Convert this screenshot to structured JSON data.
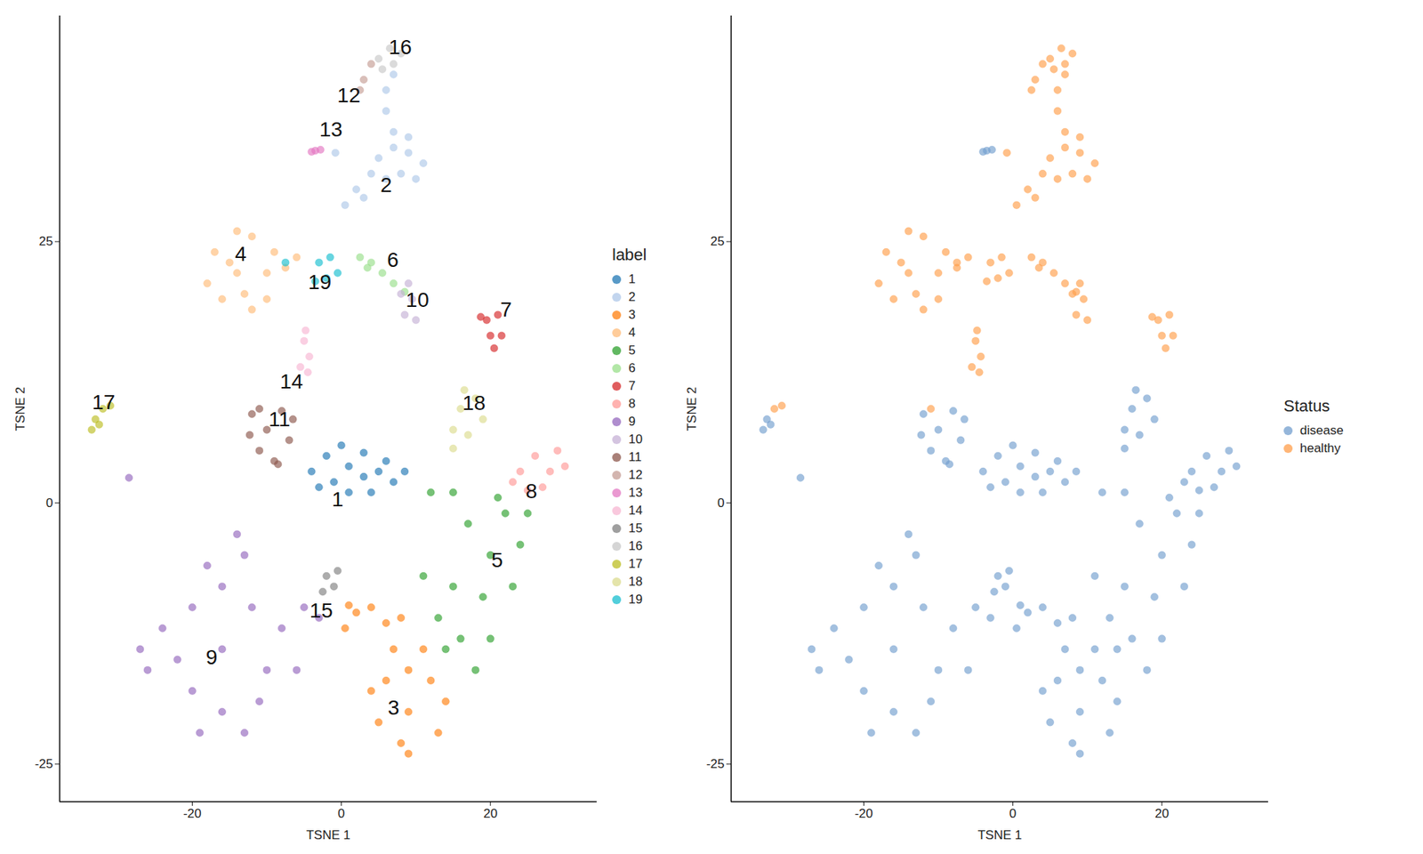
{
  "chart_data": [
    {
      "type": "scatter",
      "x_label": "TSNE 1",
      "y_label": "TSNE 2",
      "legend_title": "label",
      "legend": "right",
      "xlim": [
        -37.8,
        34.3
      ],
      "ylim": [
        -28.6,
        46.6
      ],
      "xticks": [
        -20,
        0,
        20
      ],
      "yticks": [
        -25,
        0,
        25
      ],
      "series": [
        {
          "name": "1",
          "color": "#1f77b4",
          "x": [
            -4,
            -2,
            0,
            -1,
            1,
            3,
            3,
            5,
            6,
            7,
            8.5,
            4,
            -3,
            1
          ],
          "y": [
            3,
            4.5,
            5.5,
            2,
            3.5,
            2.5,
            4.8,
            3,
            4,
            2,
            3,
            1,
            1.5,
            1
          ]
        },
        {
          "name": "2",
          "color": "#aec7e8",
          "x": [
            5,
            7,
            9,
            11,
            6,
            8,
            10,
            7,
            9,
            4,
            6,
            6,
            7,
            2,
            0.5,
            3,
            -0.8
          ],
          "y": [
            33,
            34,
            33.5,
            32.5,
            31,
            31.5,
            31,
            35.5,
            35,
            31.5,
            37.5,
            39.5,
            41,
            30,
            28.5,
            29.2,
            33.5
          ]
        },
        {
          "name": "3",
          "color": "#ff7f0e",
          "x": [
            9,
            6,
            12,
            5,
            13,
            9,
            7,
            11,
            9,
            8,
            4,
            14,
            2,
            4,
            6,
            8,
            0.5,
            1
          ],
          "y": [
            -20,
            -17,
            -17,
            -21,
            -22,
            -24,
            -14,
            -14,
            -16,
            -23,
            -18,
            -19,
            -10.5,
            -10,
            -11.5,
            -11,
            -12,
            -9.8
          ]
        },
        {
          "name": "4",
          "color": "#ffbb78",
          "x": [
            -14,
            -17,
            -12,
            -10,
            -16,
            -12,
            -18,
            -14,
            -10,
            -15,
            -9,
            -7.5,
            -6,
            -13
          ],
          "y": [
            22,
            24,
            25.5,
            22,
            19.5,
            18.5,
            21,
            26,
            19.5,
            23,
            24,
            22.5,
            23.5,
            20
          ]
        },
        {
          "name": "5",
          "color": "#2ca02c",
          "x": [
            20,
            17,
            22,
            24,
            15,
            19,
            23,
            16,
            20,
            14,
            18,
            21,
            25,
            13,
            11,
            12,
            15
          ],
          "y": [
            -5,
            -2,
            -1,
            -4,
            -8,
            -9,
            -8,
            -13,
            -13,
            -14,
            -16,
            0.5,
            -1,
            -11,
            -7,
            1,
            1
          ]
        },
        {
          "name": "6",
          "color": "#98df8a",
          "x": [
            2.5,
            4,
            5.5,
            7,
            8.5,
            3.5
          ],
          "y": [
            23.5,
            23,
            22,
            21,
            20.2,
            22.5
          ]
        },
        {
          "name": "7",
          "color": "#d62728",
          "x": [
            19.5,
            21,
            20,
            21.5,
            20.5,
            18.7
          ],
          "y": [
            17.5,
            18,
            16,
            16,
            14.8,
            17.8
          ]
        },
        {
          "name": "8",
          "color": "#ff9896",
          "x": [
            24,
            26,
            28,
            27,
            29,
            30,
            23,
            25
          ],
          "y": [
            3,
            4.5,
            3,
            1.5,
            5,
            3.5,
            2,
            1.2
          ]
        },
        {
          "name": "9",
          "color": "#9467bd",
          "x": [
            -16,
            -20,
            -12,
            -22,
            -10,
            -16,
            -18,
            -13,
            -24,
            -8,
            -19,
            -13,
            -26,
            -6,
            -16,
            -20,
            -11,
            -14,
            -27,
            -5,
            -28.5,
            -3
          ],
          "y": [
            -14,
            -10,
            -10,
            -15,
            -16,
            -20,
            -6,
            -5,
            -12,
            -12,
            -22,
            -22,
            -16,
            -16,
            -8,
            -18,
            -19,
            -3,
            -14,
            -10,
            2.4,
            -11
          ]
        },
        {
          "name": "10",
          "color": "#c5b0d5",
          "x": [
            8,
            9.5,
            8.5,
            10,
            9
          ],
          "y": [
            20,
            19.5,
            18,
            17.5,
            21
          ]
        },
        {
          "name": "11",
          "color": "#8c564b",
          "x": [
            -10,
            -12,
            -8,
            -11,
            -7,
            -9,
            -6.5,
            -12.3,
            -8.5,
            -11
          ],
          "y": [
            7,
            8.5,
            8.8,
            5,
            6,
            4,
            8,
            6.5,
            3.7,
            9
          ]
        },
        {
          "name": "12",
          "color": "#c49c94",
          "x": [
            4,
            3,
            2.5
          ],
          "y": [
            42,
            40.5,
            39.5
          ]
        },
        {
          "name": "13",
          "color": "#e377c2",
          "x": [
            -3.5,
            -2.8,
            -4
          ],
          "y": [
            33.7,
            33.8,
            33.6
          ]
        },
        {
          "name": "14",
          "color": "#f7b6d2",
          "x": [
            -5,
            -4.3,
            -5.5,
            -4.5,
            -4.8
          ],
          "y": [
            15.5,
            14,
            13,
            12.5,
            16.5
          ]
        },
        {
          "name": "15",
          "color": "#7f7f7f",
          "x": [
            -2,
            -1,
            -0.5,
            -2.5
          ],
          "y": [
            -7,
            -8,
            -6.5,
            -8.5
          ]
        },
        {
          "name": "16",
          "color": "#c7c7c7",
          "x": [
            5,
            6.5,
            8,
            7,
            5.5
          ],
          "y": [
            42.5,
            43.5,
            43,
            42,
            41.5
          ]
        },
        {
          "name": "17",
          "color": "#bcbd22",
          "x": [
            -33.5,
            -33,
            -32.5,
            -32,
            -31
          ],
          "y": [
            7,
            8,
            7.5,
            9,
            9.3
          ]
        },
        {
          "name": "18",
          "color": "#dbdb8d",
          "x": [
            16,
            18,
            15,
            17,
            19,
            16.5,
            15
          ],
          "y": [
            9,
            10,
            7,
            6.5,
            8,
            10.8,
            5.2
          ]
        },
        {
          "name": "19",
          "color": "#17becf",
          "x": [
            -3,
            -1.5,
            -2,
            -0.5,
            -3.5,
            -7.5
          ],
          "y": [
            23,
            23.5,
            21.5,
            22,
            21.2,
            23
          ]
        }
      ],
      "annotations": [
        {
          "text": "16",
          "x": 7.9,
          "y": 43.6
        },
        {
          "text": "12",
          "x": 1.0,
          "y": 39.0
        },
        {
          "text": "13",
          "x": -1.4,
          "y": 35.7
        },
        {
          "text": "2",
          "x": 6.0,
          "y": 30.4
        },
        {
          "text": "4",
          "x": -13.5,
          "y": 23.8
        },
        {
          "text": "6",
          "x": 6.9,
          "y": 23.2
        },
        {
          "text": "19",
          "x": -2.9,
          "y": 21.1
        },
        {
          "text": "10",
          "x": 10.2,
          "y": 19.4
        },
        {
          "text": "7",
          "x": 22.1,
          "y": 18.5
        },
        {
          "text": "14",
          "x": -6.7,
          "y": 11.6
        },
        {
          "text": "17",
          "x": -31.9,
          "y": 9.6
        },
        {
          "text": "18",
          "x": 17.8,
          "y": 9.5
        },
        {
          "text": "11",
          "x": -8.3,
          "y": 8.0
        },
        {
          "text": "1",
          "x": -0.5,
          "y": 0.3
        },
        {
          "text": "8",
          "x": 25.5,
          "y": 1.1
        },
        {
          "text": "5",
          "x": 20.9,
          "y": -5.5
        },
        {
          "text": "15",
          "x": -2.7,
          "y": -10.3
        },
        {
          "text": "9",
          "x": -17.4,
          "y": -14.8
        },
        {
          "text": "3",
          "x": 7.0,
          "y": -19.6
        }
      ]
    },
    {
      "type": "scatter",
      "x_label": "TSNE 1",
      "y_label": "TSNE 2",
      "legend_title": "Status",
      "legend": "right",
      "xlim": [
        -37.8,
        34.3
      ],
      "ylim": [
        -28.6,
        46.6
      ],
      "xticks": [
        -20,
        0,
        20
      ],
      "yticks": [
        -25,
        0,
        25
      ],
      "series": [
        {
          "name": "disease",
          "color": "#729ece",
          "x": [
            -4,
            -2,
            0,
            -1,
            1,
            3,
            3,
            5,
            6,
            7,
            8.5,
            4,
            -3,
            1,
            9,
            6,
            12,
            5,
            13,
            9,
            7,
            11,
            9,
            8,
            4,
            14,
            2,
            4,
            6,
            8,
            0.5,
            1,
            20,
            17,
            22,
            24,
            15,
            19,
            23,
            16,
            20,
            14,
            18,
            21,
            25,
            13,
            11,
            12,
            15,
            24,
            26,
            28,
            27,
            29,
            30,
            23,
            25,
            -16,
            -20,
            -12,
            -22,
            -10,
            -16,
            -18,
            -13,
            -24,
            -8,
            -19,
            -13,
            -26,
            -6,
            -16,
            -20,
            -11,
            -14,
            -27,
            -5,
            -28.5,
            -3,
            -10,
            -12,
            -8,
            -11,
            -7,
            -9,
            -6.5,
            -12.3,
            -8.5,
            -3.5,
            -2.8,
            -4,
            -2,
            -1,
            -0.5,
            -2.5,
            -33.5,
            -33,
            -32.5,
            16,
            18,
            15,
            17,
            19,
            16.5,
            15
          ],
          "y": [
            3,
            4.5,
            5.5,
            2,
            3.5,
            2.5,
            4.8,
            3,
            4,
            2,
            3,
            1,
            1.5,
            1,
            -20,
            -17,
            -17,
            -21,
            -22,
            -24,
            -14,
            -14,
            -16,
            -23,
            -18,
            -19,
            -10.5,
            -10,
            -11.5,
            -11,
            -12,
            -9.8,
            -5,
            -2,
            -1,
            -4,
            -8,
            -9,
            -8,
            -13,
            -13,
            -14,
            -16,
            0.5,
            -1,
            -11,
            -7,
            1,
            1,
            3,
            4.5,
            3,
            1.5,
            5,
            3.5,
            2,
            1.2,
            -14,
            -10,
            -10,
            -15,
            -16,
            -20,
            -6,
            -5,
            -12,
            -12,
            -22,
            -22,
            -16,
            -16,
            -8,
            -18,
            -19,
            -3,
            -14,
            -10,
            2.4,
            -11,
            7,
            8.5,
            8.8,
            5,
            6,
            4,
            8,
            6.5,
            3.7,
            33.7,
            33.8,
            33.6,
            -7,
            -8,
            -6.5,
            -8.5,
            7,
            8,
            7.5,
            9,
            10,
            7,
            6.5,
            8,
            10.8,
            5.2
          ]
        },
        {
          "name": "healthy",
          "color": "#ff9e4a",
          "x": [
            5,
            7,
            9,
            11,
            6,
            8,
            10,
            7,
            9,
            4,
            6,
            6,
            7,
            2,
            0.5,
            3,
            -0.8,
            -14,
            -17,
            -12,
            -10,
            -16,
            -12,
            -18,
            -14,
            -10,
            -15,
            -9,
            -7.5,
            -6,
            -13,
            2.5,
            4,
            5.5,
            7,
            8.5,
            3.5,
            19.5,
            21,
            20,
            21.5,
            20.5,
            18.7,
            8,
            9.5,
            8.5,
            10,
            9,
            -11,
            4,
            3,
            2.5,
            -5,
            -4.3,
            -5.5,
            -4.5,
            -4.8,
            5,
            6.5,
            8,
            7,
            5.5,
            -32,
            -31,
            -3,
            -1.5,
            -2,
            -0.5,
            -3.5,
            -7.5
          ],
          "y": [
            33,
            34,
            33.5,
            32.5,
            31,
            31.5,
            31,
            35.5,
            35,
            31.5,
            37.5,
            39.5,
            41,
            30,
            28.5,
            29.2,
            33.5,
            22,
            24,
            25.5,
            22,
            19.5,
            18.5,
            21,
            26,
            19.5,
            23,
            24,
            22.5,
            23.5,
            20,
            23.5,
            23,
            22,
            21,
            20.2,
            22.5,
            17.5,
            18,
            16,
            16,
            14.8,
            17.8,
            20,
            19.5,
            18,
            17.5,
            21,
            9,
            42,
            40.5,
            39.5,
            15.5,
            14,
            13,
            12.5,
            16.5,
            42.5,
            43.5,
            43,
            42,
            41.5,
            9,
            9.3,
            23,
            23.5,
            21.5,
            22,
            21.2,
            23
          ]
        }
      ]
    }
  ]
}
